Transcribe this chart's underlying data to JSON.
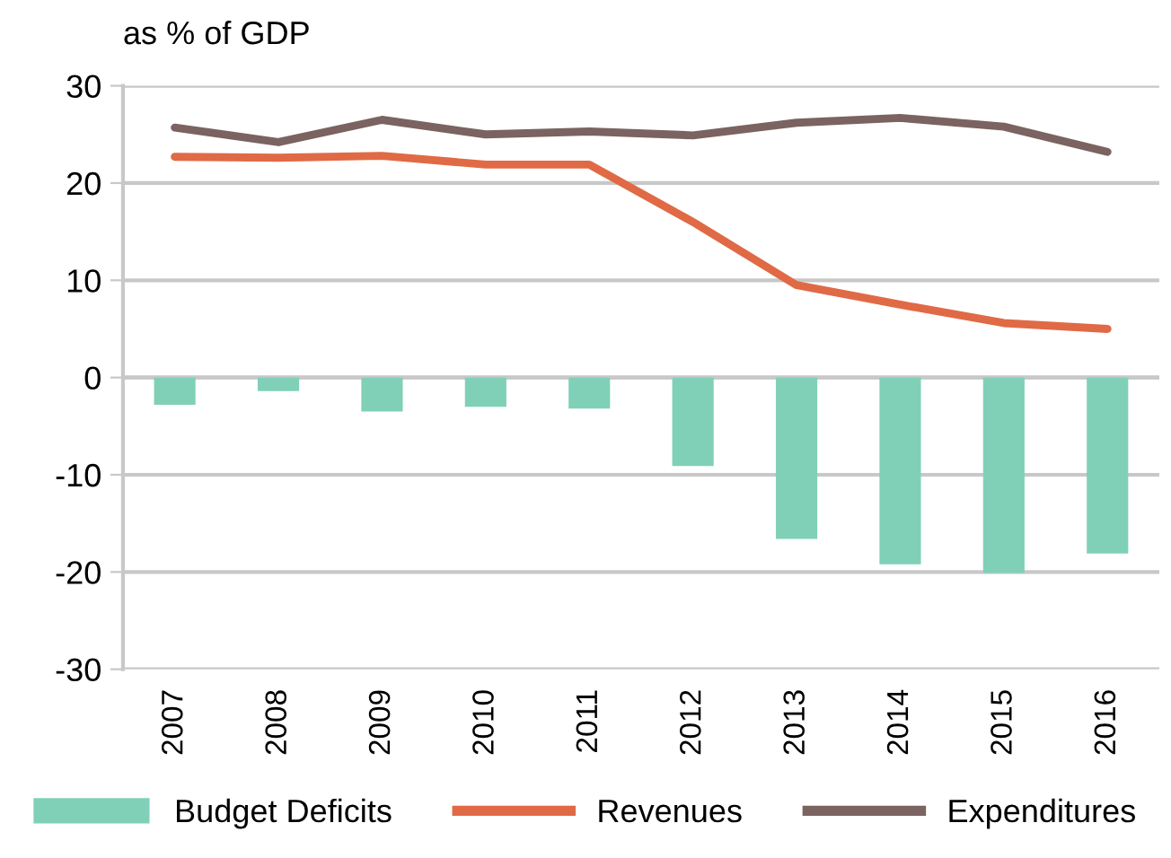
{
  "chart_data": {
    "type": "bar",
    "ylabel": "as % of GDP",
    "categories": [
      "2007",
      "2008",
      "2009",
      "2010",
      "2011",
      "2012",
      "2013",
      "2014",
      "2015",
      "2016"
    ],
    "series": [
      {
        "name": "Budget Deficits",
        "color": "#80d0b8",
        "values": [
          -2.8,
          -1.4,
          -3.5,
          -3.0,
          -3.2,
          -9.1,
          -16.6,
          -19.2,
          -20.1,
          -18.1
        ]
      },
      {
        "name": "Revenues",
        "type": "line",
        "color": "#e06a45",
        "values": [
          22.7,
          22.6,
          22.8,
          21.9,
          21.9,
          16.0,
          9.5,
          7.5,
          5.6,
          5.0
        ]
      },
      {
        "name": "Expenditures",
        "type": "line",
        "color": "#7a6360",
        "values": [
          25.7,
          24.2,
          26.5,
          25.0,
          25.3,
          24.9,
          26.2,
          26.7,
          25.8,
          23.2
        ]
      }
    ],
    "ylim": [
      -30,
      30
    ],
    "yticks": [
      -30,
      -20,
      -10,
      0,
      10,
      20,
      30
    ],
    "grid": "y",
    "legend": "bottom",
    "marker": "none",
    "line_style": "solid"
  }
}
